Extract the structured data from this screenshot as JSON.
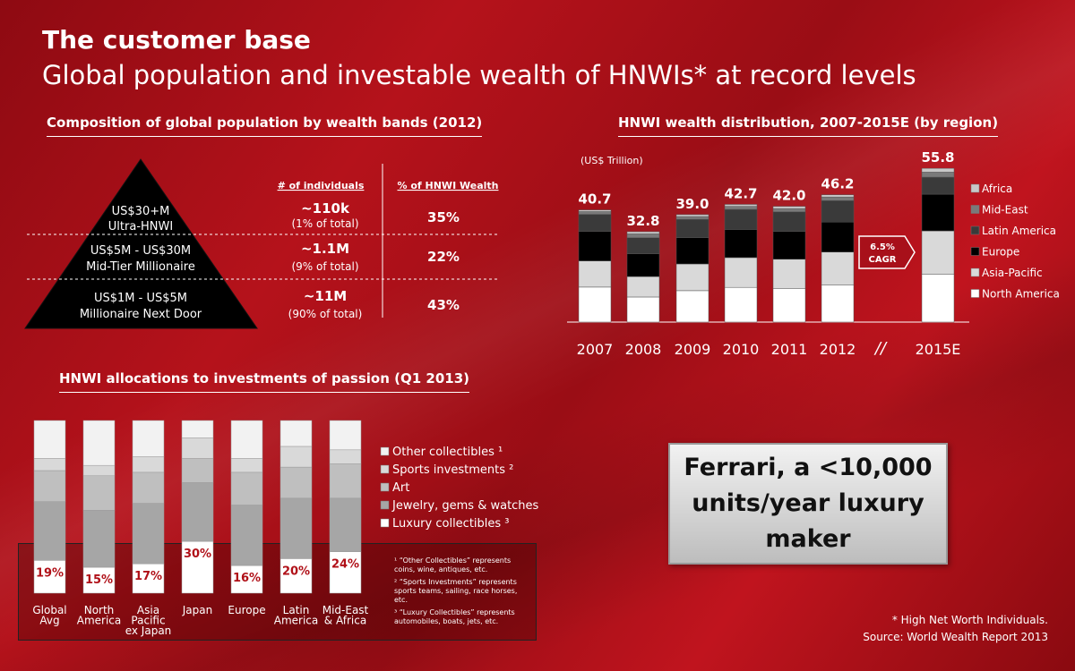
{
  "title": "The customer base",
  "subtitle": "Global population and investable wealth of HNWIs* at record levels",
  "pyramid": {
    "title": "Composition of global population by wealth bands (2012)",
    "col_individuals": "# of individuals",
    "col_wealth": "% of HNWI Wealth",
    "rows": [
      {
        "band": "US$30+M",
        "label": "Ultra-HNWI",
        "count": "~110k",
        "share": "(1% of total)",
        "wealth": "35%"
      },
      {
        "band": "US$5M - US$30M",
        "label": "Mid-Tier Millionaire",
        "count": "~1.1M",
        "share": "(9% of total)",
        "wealth": "22%"
      },
      {
        "band": "US$1M - US$5M",
        "label": "Millionaire Next Door",
        "count": "~11M",
        "share": "(90% of total)",
        "wealth": "43%"
      }
    ]
  },
  "ferrari_text": "Ferrari, a <10,000 units/year luxury maker",
  "footnote_star": "* High Net Worth Individuals.",
  "source": "Source: World Wealth Report 2013",
  "passion_notes": [
    "¹ “Other Collectibles” represents coins, wine, antiques, etc.",
    "² “Sports Investments” represents sports teams, sailing, race horses, etc.",
    "³ “Luxury Collectibles” represents automobiles, boats, jets, etc."
  ],
  "colors": {
    "north_america": "#ffffff",
    "asia_pacific": "#d9d9d9",
    "europe": "#000000",
    "latin_america": "#3a3a3a",
    "mid_east": "#7a7a7a",
    "africa": "#c8c8c8"
  },
  "chart_data": [
    {
      "type": "bar",
      "title": "HNWI wealth distribution, 2007-2015E (by region)",
      "ylabel": "(US$ Trillion)",
      "categories": [
        "2007",
        "2008",
        "2009",
        "2010",
        "2011",
        "2012",
        "2015E"
      ],
      "totals": [
        40.7,
        32.8,
        39.0,
        42.7,
        42.0,
        46.2,
        55.8
      ],
      "total_labels": [
        "40.7",
        "32.8",
        "39.0",
        "42.7",
        "42.0",
        "46.2",
        "55.8"
      ],
      "series": [
        {
          "name": "North America",
          "values": [
            12.7,
            9.1,
            11.4,
            12.6,
            12.1,
            13.4,
            17.3
          ]
        },
        {
          "name": "Asia-Pacific",
          "values": [
            9.5,
            7.4,
            9.7,
            10.8,
            10.7,
            12.0,
            15.8
          ]
        },
        {
          "name": "Europe",
          "values": [
            10.7,
            8.3,
            9.5,
            10.2,
            10.1,
            10.9,
            13.3
          ]
        },
        {
          "name": "Latin America",
          "values": [
            6.2,
            5.8,
            6.7,
            7.3,
            7.1,
            7.8,
            6.2
          ]
        },
        {
          "name": "Mid-East",
          "values": [
            1.0,
            1.4,
            1.0,
            1.1,
            1.2,
            1.3,
            1.8
          ]
        },
        {
          "name": "Africa",
          "values": [
            0.6,
            0.8,
            0.7,
            0.7,
            0.8,
            0.8,
            1.4
          ]
        }
      ],
      "annotation": "6.5% CAGR",
      "legend_position": "right"
    },
    {
      "type": "bar",
      "title": "HNWI allocations to investments of passion (Q1 2013)",
      "categories": [
        "Global Avg",
        "North America",
        "Asia Pacific ex Japan",
        "Japan",
        "Europe",
        "Latin America",
        "Mid-East & Africa"
      ],
      "series": [
        {
          "name": "Luxury collectibles ³",
          "values": [
            19,
            15,
            17,
            30,
            16,
            20,
            24
          ]
        },
        {
          "name": "Jewelry, gems & watches",
          "values": [
            34,
            33,
            35,
            34,
            35,
            35,
            31
          ]
        },
        {
          "name": "Art",
          "values": [
            18,
            20,
            18,
            14,
            19,
            18,
            20
          ]
        },
        {
          "name": "Sports investments ²",
          "values": [
            7,
            6,
            9,
            12,
            8,
            12,
            8
          ]
        },
        {
          "name": "Other collectibles ¹",
          "values": [
            22,
            26,
            21,
            10,
            22,
            15,
            17
          ]
        }
      ],
      "label_series": "Luxury collectibles ³",
      "value_labels": [
        "19%",
        "15%",
        "17%",
        "30%",
        "16%",
        "20%",
        "24%"
      ],
      "legend_position": "right"
    }
  ]
}
